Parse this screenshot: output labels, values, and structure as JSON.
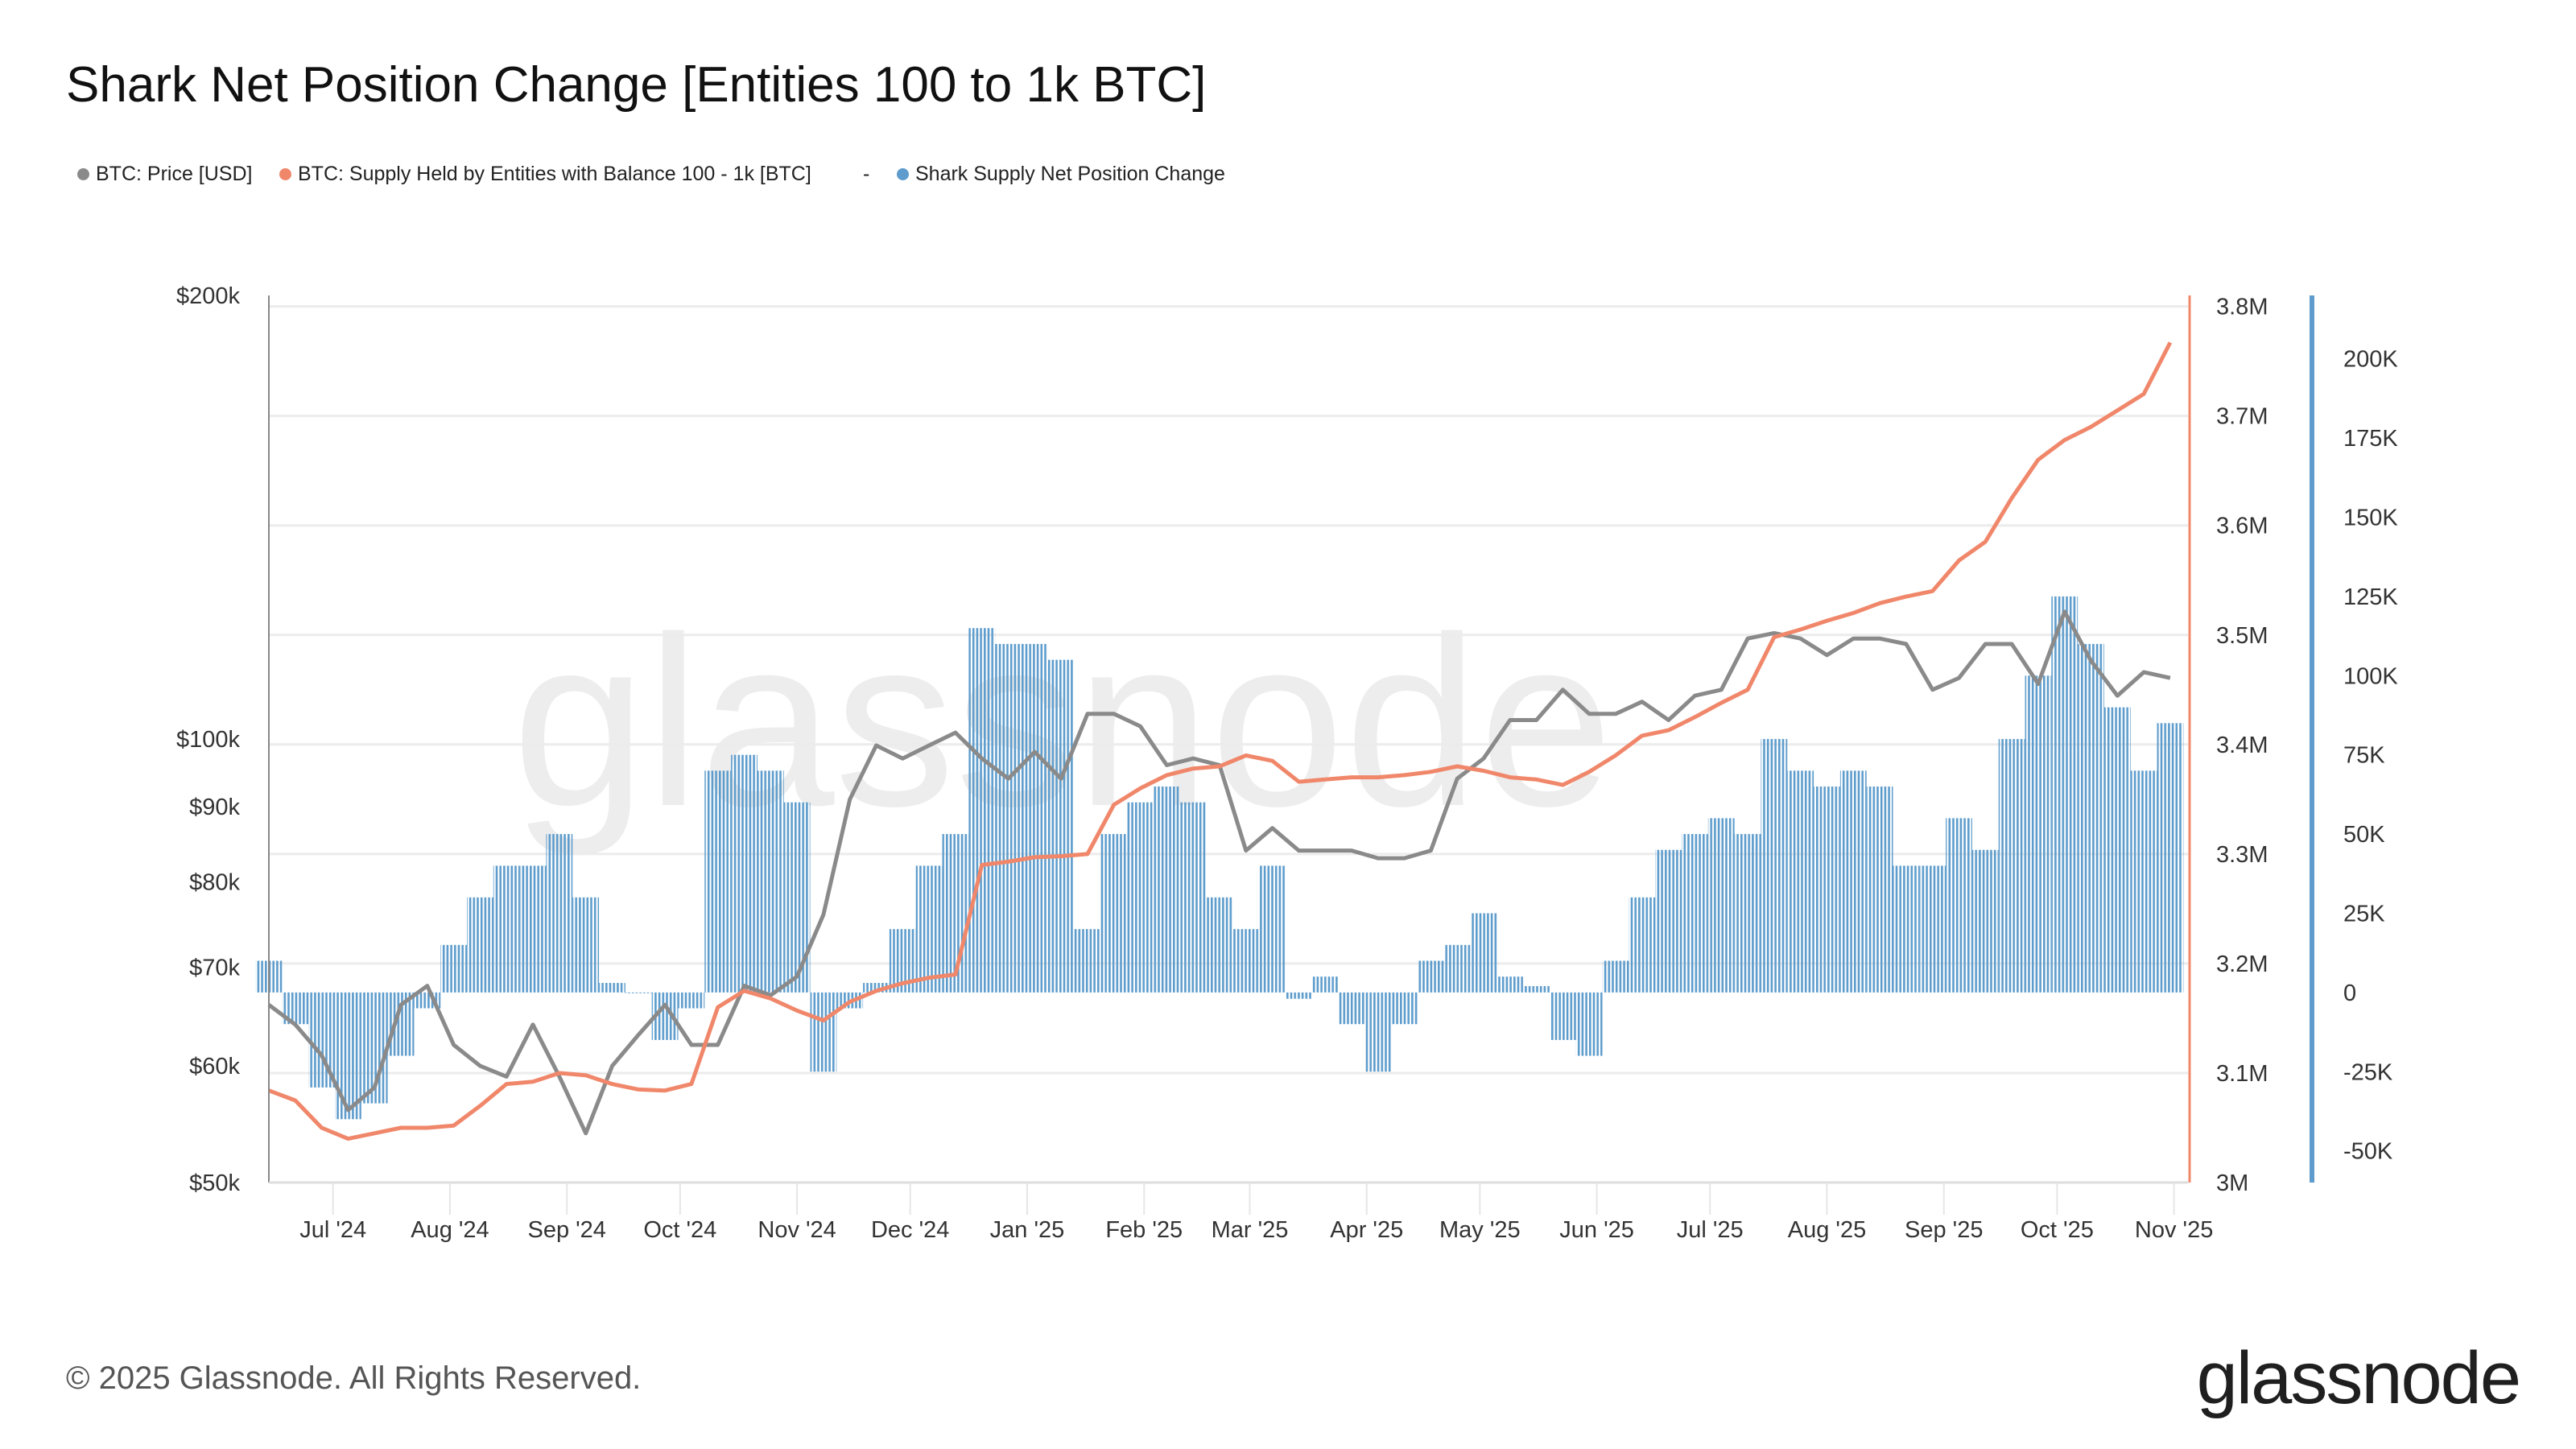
{
  "title": "Shark Net Position Change [Entities 100 to 1k BTC]",
  "legend": [
    {
      "label": "BTC: Price [USD]",
      "color": "#8a8a8a"
    },
    {
      "label": "BTC: Supply Held by Entities with Balance 100 - 1k [BTC]",
      "color": "#f0876a"
    },
    {
      "label": "-"
    },
    {
      "label": "Shark Supply Net Position Change",
      "color": "#5d9ccc"
    }
  ],
  "footer": "© 2025 Glassnode. All Rights Reserved.",
  "logo": "glassnode",
  "watermark": "glassnode",
  "chart_data": {
    "type": "bar+line",
    "title": "Shark Net Position Change [Entities 100 to 1k BTC]",
    "x_ticks": [
      "Jul '24",
      "Aug '24",
      "Sep '24",
      "Oct '24",
      "Nov '24",
      "Dec '24",
      "Jan '25",
      "Feb '25",
      "Mar '25",
      "Apr '25",
      "May '25",
      "Jun '25",
      "Jul '25",
      "Aug '25",
      "Sep '25",
      "Oct '25",
      "Nov '25"
    ],
    "x_tick_dates": [
      "2024-07-01",
      "2024-08-01",
      "2024-09-01",
      "2024-10-01",
      "2024-11-01",
      "2024-12-01",
      "2025-01-01",
      "2025-02-01",
      "2025-03-01",
      "2025-04-01",
      "2025-05-01",
      "2025-06-01",
      "2025-07-01",
      "2025-08-01",
      "2025-09-01",
      "2025-10-01",
      "2025-11-01"
    ],
    "xlim": [
      "2024-06-14",
      "2025-11-03"
    ],
    "axes": {
      "price": {
        "scale": "log",
        "ylim": [
          50000,
          200000
        ],
        "ticks": [
          50000,
          60000,
          70000,
          80000,
          90000,
          100000,
          200000
        ],
        "tick_labels": [
          "$50k",
          "$60k",
          "$70k",
          "$80k",
          "$90k",
          "$100k",
          "$200k"
        ],
        "side": "left"
      },
      "supply": {
        "scale": "linear",
        "ylim": [
          3000000,
          3810000
        ],
        "ticks": [
          3000000,
          3100000,
          3200000,
          3300000,
          3400000,
          3500000,
          3600000,
          3700000,
          3800000
        ],
        "tick_labels": [
          "3M",
          "3.1M",
          "3.2M",
          "3.3M",
          "3.4M",
          "3.5M",
          "3.6M",
          "3.7M",
          "3.8M"
        ],
        "side": "right",
        "color": "#f0876a"
      },
      "net": {
        "scale": "linear",
        "ylim": [
          -60000,
          220000
        ],
        "ticks": [
          -50000,
          -25000,
          0,
          25000,
          50000,
          75000,
          100000,
          125000,
          150000,
          175000,
          200000
        ],
        "tick_labels": [
          "-50K",
          "-25K",
          "0",
          "25K",
          "50K",
          "75K",
          "100K",
          "125K",
          "150K",
          "175K",
          "200K"
        ],
        "side": "right",
        "color": "#5d9ccc"
      }
    },
    "grid": true,
    "legend_position": "top-left",
    "dates": [
      "2024-06-14",
      "2024-06-21",
      "2024-06-28",
      "2024-07-05",
      "2024-07-12",
      "2024-07-19",
      "2024-07-26",
      "2024-08-02",
      "2024-08-09",
      "2024-08-16",
      "2024-08-23",
      "2024-08-30",
      "2024-09-06",
      "2024-09-13",
      "2024-09-20",
      "2024-09-27",
      "2024-10-04",
      "2024-10-11",
      "2024-10-18",
      "2024-10-25",
      "2024-11-01",
      "2024-11-08",
      "2024-11-15",
      "2024-11-22",
      "2024-11-29",
      "2024-12-06",
      "2024-12-13",
      "2024-12-20",
      "2024-12-27",
      "2025-01-03",
      "2025-01-10",
      "2025-01-17",
      "2025-01-24",
      "2025-01-31",
      "2025-02-07",
      "2025-02-14",
      "2025-02-21",
      "2025-02-28",
      "2025-03-07",
      "2025-03-14",
      "2025-03-21",
      "2025-03-28",
      "2025-04-04",
      "2025-04-11",
      "2025-04-18",
      "2025-04-25",
      "2025-05-02",
      "2025-05-09",
      "2025-05-16",
      "2025-05-23",
      "2025-05-30",
      "2025-06-06",
      "2025-06-13",
      "2025-06-20",
      "2025-06-27",
      "2025-07-04",
      "2025-07-11",
      "2025-07-18",
      "2025-07-25",
      "2025-08-01",
      "2025-08-08",
      "2025-08-15",
      "2025-08-22",
      "2025-08-29",
      "2025-09-05",
      "2025-09-12",
      "2025-09-19",
      "2025-09-26",
      "2025-10-03",
      "2025-10-10",
      "2025-10-17",
      "2025-10-24",
      "2025-10-31"
    ],
    "series": [
      {
        "name": "BTC: Price [USD]",
        "type": "line",
        "axis": "price",
        "color": "#8a8a8a",
        "values": [
          66000,
          64000,
          61000,
          56000,
          58000,
          66000,
          68000,
          62000,
          60000,
          59000,
          64000,
          59000,
          54000,
          60000,
          63000,
          66000,
          62000,
          62000,
          68000,
          67000,
          69000,
          76000,
          91000,
          99000,
          97000,
          99000,
          101000,
          97000,
          94000,
          98000,
          94000,
          104000,
          104000,
          102000,
          96000,
          97000,
          96000,
          84000,
          87000,
          84000,
          84000,
          84000,
          83000,
          83000,
          84000,
          94000,
          97000,
          103000,
          103000,
          108000,
          104000,
          104000,
          106000,
          103000,
          107000,
          108000,
          117000,
          118000,
          117000,
          114000,
          117000,
          117000,
          116000,
          108000,
          110000,
          116000,
          116000,
          109000,
          122000,
          113000,
          107000,
          111000,
          110000
        ]
      },
      {
        "name": "BTC: Supply Held by Entities with Balance 100 - 1k [BTC]",
        "type": "line",
        "axis": "supply",
        "color": "#f0876a",
        "values": [
          3084000,
          3075000,
          3050000,
          3040000,
          3045000,
          3050000,
          3050000,
          3052000,
          3070000,
          3090000,
          3092000,
          3100000,
          3098000,
          3090000,
          3085000,
          3084000,
          3090000,
          3160000,
          3175000,
          3168000,
          3157000,
          3148000,
          3165000,
          3175000,
          3182000,
          3187000,
          3190000,
          3290000,
          3293000,
          3297000,
          3298000,
          3300000,
          3345000,
          3360000,
          3372000,
          3378000,
          3380000,
          3390000,
          3385000,
          3366000,
          3368000,
          3370000,
          3370000,
          3372000,
          3375000,
          3380000,
          3376000,
          3370000,
          3368000,
          3363000,
          3375000,
          3390000,
          3408000,
          3413000,
          3425000,
          3438000,
          3450000,
          3498000,
          3505000,
          3513000,
          3520000,
          3529000,
          3535000,
          3540000,
          3568000,
          3585000,
          3625000,
          3660000,
          3678000,
          3690000,
          3705000,
          3720000,
          3767000
        ]
      },
      {
        "name": "Shark Supply Net Position Change",
        "type": "bar",
        "axis": "net",
        "color": "#5d9ccc",
        "values": [
          10000,
          -10000,
          -30000,
          -40000,
          -35000,
          -20000,
          -5000,
          15000,
          30000,
          40000,
          40000,
          50000,
          30000,
          3000,
          0,
          -15000,
          -5000,
          70000,
          75000,
          70000,
          60000,
          -25000,
          -5000,
          3000,
          20000,
          40000,
          50000,
          115000,
          110000,
          110000,
          105000,
          20000,
          50000,
          60000,
          65000,
          60000,
          30000,
          20000,
          40000,
          -2000,
          5000,
          -10000,
          -25000,
          -10000,
          10000,
          15000,
          25000,
          5000,
          2000,
          -15000,
          -20000,
          10000,
          30000,
          45000,
          50000,
          55000,
          50000,
          80000,
          70000,
          65000,
          70000,
          65000,
          40000,
          40000,
          55000,
          45000,
          80000,
          100000,
          125000,
          110000,
          90000,
          70000,
          85000
        ]
      }
    ]
  }
}
